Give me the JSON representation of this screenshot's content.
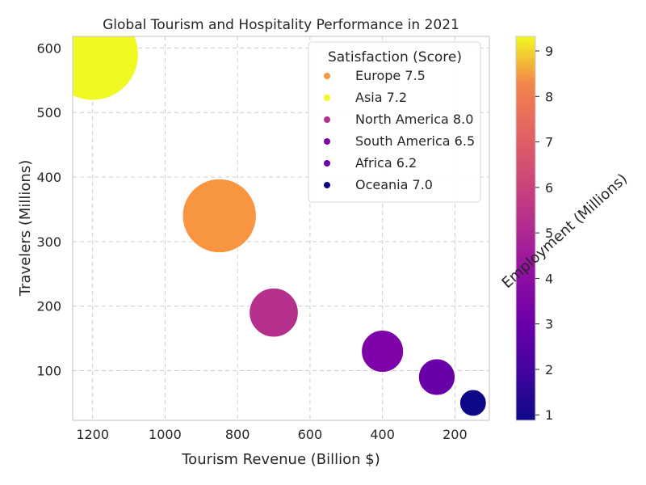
{
  "chart_data": {
    "type": "scatter",
    "title": "Global Tourism and Hospitality Performance in 2021",
    "xlabel": "Tourism Revenue (Billion $)",
    "ylabel": "Travelers (Millions)",
    "xlim": [
      1255,
      105
    ],
    "ylim": [
      23,
      618
    ],
    "x_reversed": true,
    "xticks": [
      1200,
      1000,
      800,
      600,
      400,
      200
    ],
    "yticks": [
      100,
      200,
      300,
      400,
      500,
      600
    ],
    "grid": true,
    "legend": {
      "title": "Satisfaction (Score)",
      "placement": "top-right",
      "entries": [
        "Europe 7.5",
        "Asia 7.2",
        "North America 8.0",
        "South America 6.5",
        "Africa 6.2",
        "Oceania 7.0"
      ]
    },
    "colorbar": {
      "label": "Employment (Millions)",
      "colormap": "plasma",
      "range": [
        0.88,
        9.32
      ],
      "ticks": [
        1,
        2,
        3,
        4,
        5,
        6,
        7,
        8,
        9
      ]
    },
    "points": [
      {
        "region": "Europe",
        "revenue": 850,
        "travelers": 340,
        "employment": 7.0,
        "color": "#f89540"
      },
      {
        "region": "Asia",
        "revenue": 1200,
        "travelers": 590,
        "employment": 9.3,
        "color": "#f0f921"
      },
      {
        "region": "North America",
        "revenue": 700,
        "travelers": 190,
        "employment": 3.8,
        "color": "#b52f8c"
      },
      {
        "region": "South America",
        "revenue": 400,
        "travelers": 130,
        "employment": 2.9,
        "color": "#7e03a8"
      },
      {
        "region": "Africa",
        "revenue": 250,
        "travelers": 90,
        "employment": 2.2,
        "color": "#6a00a8"
      },
      {
        "region": "Oceania",
        "revenue": 150,
        "travelers": 50,
        "employment": 0.9,
        "color": "#0d0887"
      }
    ],
    "legend_colors": [
      "#f89540",
      "#f0f921",
      "#b52f8c",
      "#7e03a8",
      "#6a00a8",
      "#0d0887"
    ]
  }
}
